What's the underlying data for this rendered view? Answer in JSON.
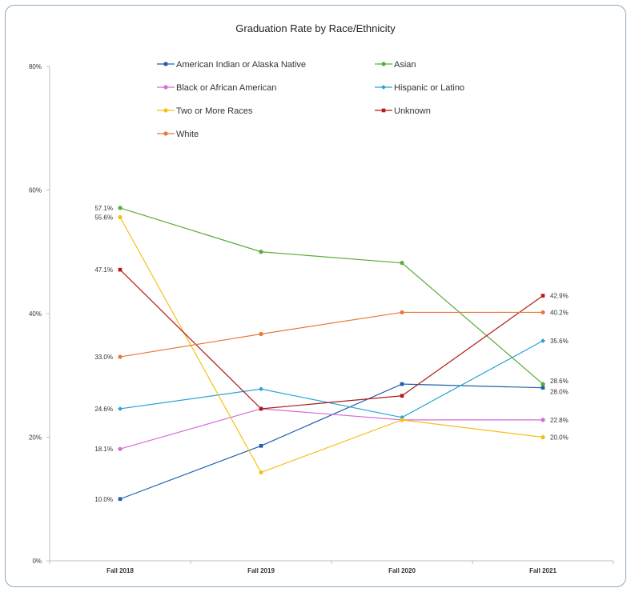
{
  "chart_data": {
    "type": "line",
    "title": "Graduation Rate by Race/Ethnicity",
    "xlabel": "",
    "ylabel": "",
    "categories": [
      "Fall 2018",
      "Fall 2019",
      "Fall 2020",
      "Fall 2021"
    ],
    "ylim": [
      0,
      80
    ],
    "yticks": [
      {
        "value": 0,
        "label": "0%"
      },
      {
        "value": 20,
        "label": "20%"
      },
      {
        "value": 40,
        "label": "40%"
      },
      {
        "value": 60,
        "label": "60%"
      },
      {
        "value": 80,
        "label": "80%"
      }
    ],
    "grid": false,
    "legend_position": "top",
    "series": [
      {
        "name": "American Indian or Alaska Native",
        "color": "#1f5fa8",
        "marker": "square",
        "values": [
          10.0,
          18.6,
          28.6,
          28.0
        ],
        "labels": [
          "10.0%",
          null,
          null,
          "28.0%"
        ]
      },
      {
        "name": "Asian",
        "color": "#5aab3a",
        "marker": "circle",
        "values": [
          57.1,
          50.0,
          48.2,
          28.6
        ],
        "labels": [
          "57.1%",
          null,
          null,
          "28.6%"
        ]
      },
      {
        "name": "Black or African American",
        "color": "#d26ed6",
        "marker": "circle",
        "values": [
          18.1,
          24.6,
          22.8,
          22.8
        ],
        "labels": [
          "18.1%",
          null,
          null,
          "22.8%"
        ]
      },
      {
        "name": "Hispanic or Latino",
        "color": "#27a4d2",
        "marker": "diamond",
        "values": [
          24.6,
          27.8,
          23.2,
          35.6
        ],
        "labels": [
          "24.6%",
          null,
          null,
          "35.6%"
        ]
      },
      {
        "name": "Two or More Races",
        "color": "#f5c016",
        "marker": "circle",
        "values": [
          55.6,
          14.3,
          22.8,
          20.0
        ],
        "labels": [
          "55.6%",
          null,
          null,
          "20.0%"
        ]
      },
      {
        "name": "Unknown",
        "color": "#b01a1a",
        "marker": "square",
        "values": [
          47.1,
          24.6,
          26.7,
          42.9
        ],
        "labels": [
          "47.1%",
          null,
          null,
          "42.9%"
        ]
      },
      {
        "name": "White",
        "color": "#e8783a",
        "marker": "circle",
        "values": [
          33.0,
          36.7,
          40.2,
          40.2
        ],
        "labels": [
          "33.0%",
          null,
          null,
          "40.2%"
        ]
      }
    ]
  }
}
